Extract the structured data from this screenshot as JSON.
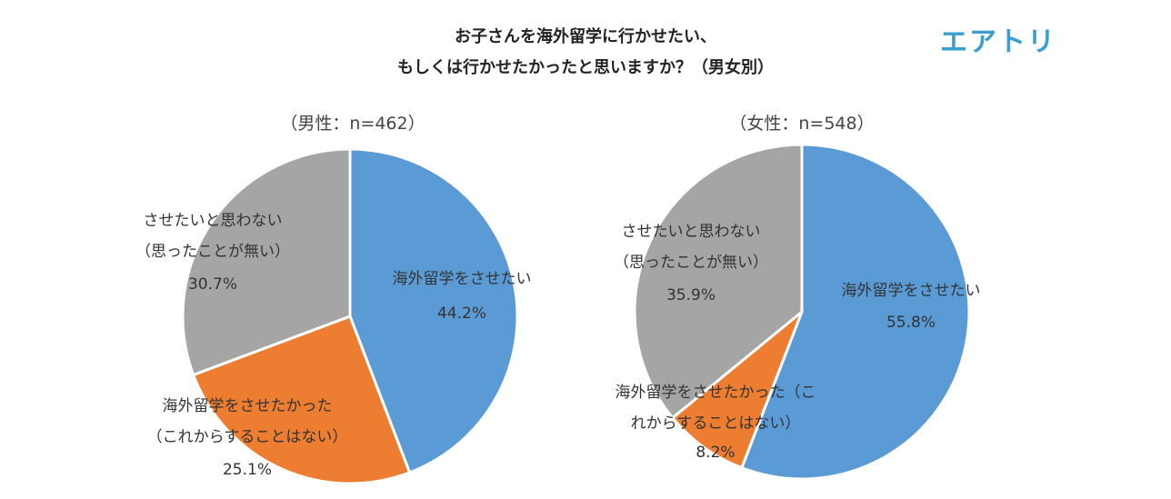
{
  "title_lines": [
    "お子さんを海外留学に行かせたい、",
    "もしくは行かせたかったと思いますか？（男女別）"
  ],
  "logo": "エアトリ",
  "colors": {
    "slice_1": "#5b9bd5",
    "slice_2": "#ed7d31",
    "slice_3": "#a5a5a5",
    "edge": "#ffffff"
  },
  "chart_data": [
    {
      "type": "pie",
      "title": "（男性：n=462）",
      "slices": [
        {
          "label_lines": [
            "海外留学をさせたい"
          ],
          "value": 44.2,
          "pct": "44.2%"
        },
        {
          "label_lines": [
            "海外留学をさせたかった",
            "（これからすることはない）"
          ],
          "value": 25.1,
          "pct": "25.1%"
        },
        {
          "label_lines": [
            "させたいと思わない",
            "（思ったことが無い）"
          ],
          "value": 30.7,
          "pct": "30.7%"
        }
      ]
    },
    {
      "type": "pie",
      "title": "（女性：n=548）",
      "slices": [
        {
          "label_lines": [
            "海外留学をさせたい"
          ],
          "value": 55.8,
          "pct": "55.8%"
        },
        {
          "label_lines": [
            "海外留学をさせたかった（こ",
            "れからすることはない）"
          ],
          "value": 8.2,
          "pct": "8.2%"
        },
        {
          "label_lines": [
            "させたいと思わない",
            "（思ったことが無い）"
          ],
          "value": 35.9,
          "pct": "35.9%"
        }
      ]
    }
  ]
}
